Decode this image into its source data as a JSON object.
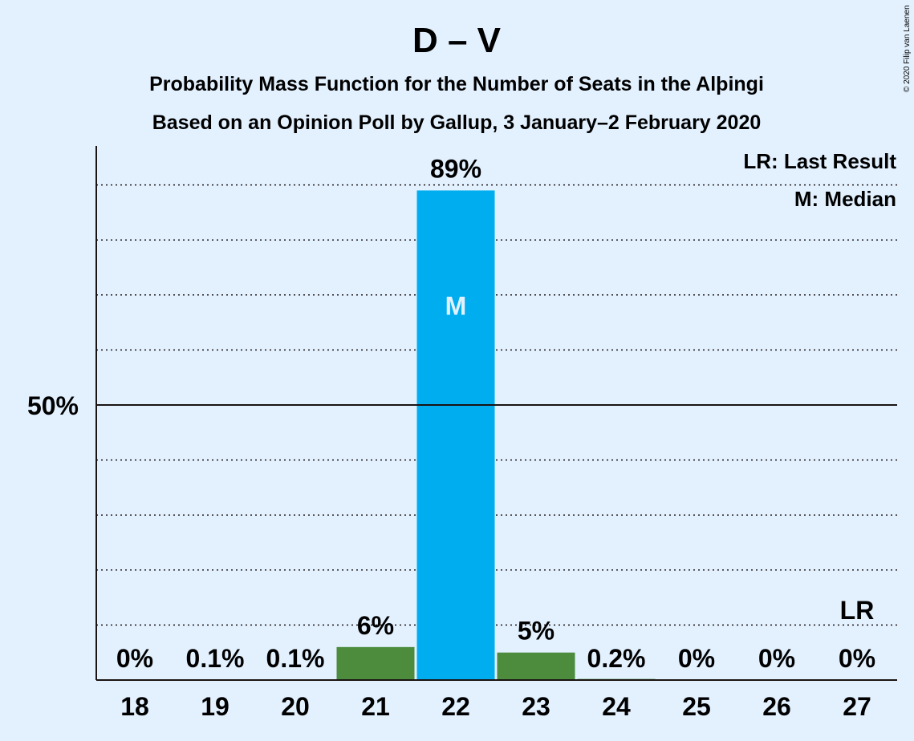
{
  "title": "D – V",
  "subtitle_line1": "Probability Mass Function for the Number of Seats in the Alþingi",
  "subtitle_line2": "Based on an Opinion Poll by Gallup, 3 January–2 February 2020",
  "copyright": "© 2020 Filip van Laenen",
  "legend": {
    "last_result": "LR: Last Result",
    "median": "M: Median"
  },
  "colors": {
    "background": "#e3f1ff",
    "median_bar": "#00aeef",
    "other_bar": "#4c8c3c",
    "text": "#1a1313"
  },
  "chart_data": {
    "type": "bar",
    "categories": [
      "18",
      "19",
      "20",
      "21",
      "22",
      "23",
      "24",
      "25",
      "26",
      "27"
    ],
    "values": [
      0,
      0.1,
      0.1,
      6,
      89,
      5,
      0.2,
      0,
      0,
      0
    ],
    "data_labels": [
      "0%",
      "0.1%",
      "0.1%",
      "6%",
      "89%",
      "5%",
      "0.2%",
      "0%",
      "0%",
      "0%"
    ],
    "ylim": [
      0,
      100
    ],
    "yticks": [
      50
    ],
    "ytick_labels": [
      "50%"
    ],
    "grid": true,
    "median_category": "22",
    "median_marker": "M",
    "last_result_category": "27",
    "last_result_marker": "LR",
    "legend_position": "top-right"
  }
}
